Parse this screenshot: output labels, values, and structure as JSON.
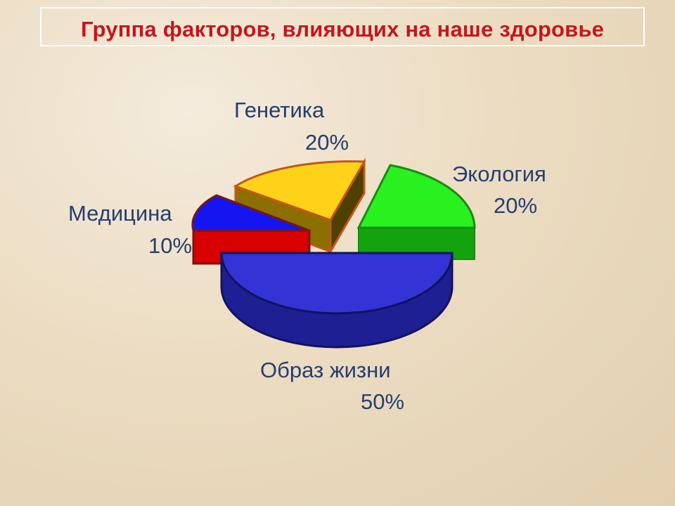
{
  "title": "Группа  факторов, влияющих на наше здоровье",
  "chart_data": {
    "type": "pie",
    "style": "3d-exploded",
    "slices": [
      {
        "label": "Генетика",
        "value": 20,
        "percent_label": "20%",
        "color": "#ffd21a",
        "side_color": "#8b6f00",
        "edge_color": "#c4561a"
      },
      {
        "label": "Экология",
        "value": 20,
        "percent_label": "20%",
        "color": "#29f11f",
        "side_color": "#14a30f",
        "edge_color": "#1a8a13"
      },
      {
        "label": "Образ жизни",
        "value": 50,
        "percent_label": "50%",
        "color": "#3333d6",
        "side_color": "#1e1f93",
        "edge_color": "#12135d"
      },
      {
        "label": "Медицина",
        "value": 10,
        "percent_label": "10%",
        "color": "#1515f2",
        "side_color": "#d90000",
        "edge_color": "#7a1610"
      }
    ]
  }
}
